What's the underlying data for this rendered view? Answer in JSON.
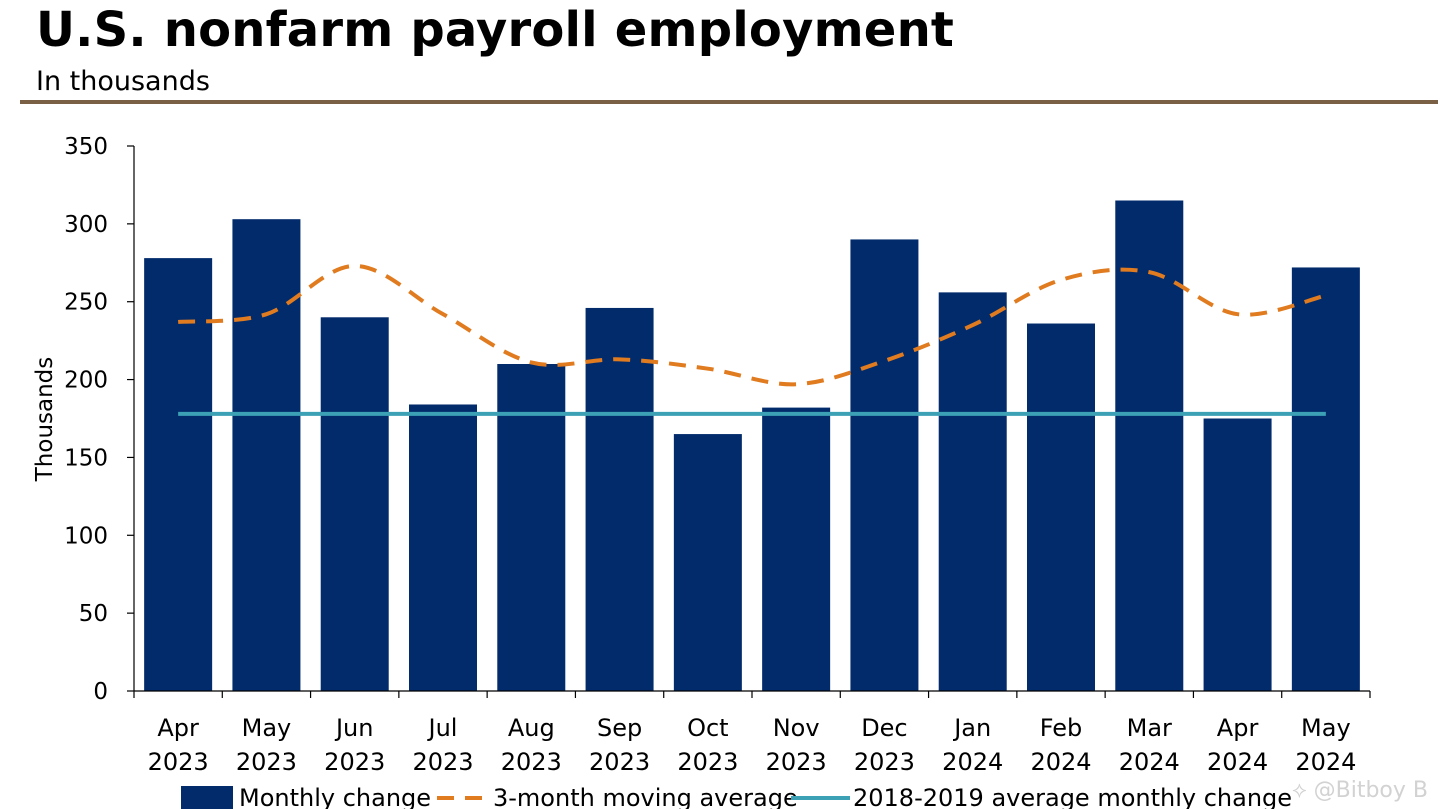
{
  "header": {
    "title": "U.S. nonfarm payroll employment",
    "subtitle": "In thousands"
  },
  "watermark": "⟡ @Bitboy B",
  "colors": {
    "bar": "#022b6b",
    "moving_average": "#e07b1f",
    "benchmark": "#3da1b5",
    "rule": "#7a6145"
  },
  "chart_data": {
    "type": "bar",
    "title": "U.S. nonfarm payroll employment",
    "subtitle": "In thousands",
    "xlabel": "",
    "ylabel": "Thousands",
    "ylim": [
      0,
      350
    ],
    "yticks": [
      0,
      50,
      100,
      150,
      200,
      250,
      300,
      350
    ],
    "categories": [
      {
        "month": "Apr",
        "year": "2023"
      },
      {
        "month": "May",
        "year": "2023"
      },
      {
        "month": "Jun",
        "year": "2023"
      },
      {
        "month": "Jul",
        "year": "2023"
      },
      {
        "month": "Aug",
        "year": "2023"
      },
      {
        "month": "Sep",
        "year": "2023"
      },
      {
        "month": "Oct",
        "year": "2023"
      },
      {
        "month": "Nov",
        "year": "2023"
      },
      {
        "month": "Dec",
        "year": "2023"
      },
      {
        "month": "Jan",
        "year": "2024"
      },
      {
        "month": "Feb",
        "year": "2024"
      },
      {
        "month": "Mar",
        "year": "2024"
      },
      {
        "month": "Apr",
        "year": "2024"
      },
      {
        "month": "May",
        "year": "2024"
      }
    ],
    "series": [
      {
        "name": "Monthly change",
        "type": "bar",
        "values": [
          278,
          303,
          240,
          184,
          210,
          246,
          165,
          182,
          290,
          256,
          236,
          315,
          175,
          272
        ]
      },
      {
        "name": "3-month moving average",
        "type": "line",
        "style": "dashed",
        "values": [
          237,
          242,
          273,
          242,
          211,
          213,
          207,
          197,
          212,
          235,
          264,
          269,
          242,
          254
        ]
      },
      {
        "name": "2018-2019 average monthly change",
        "type": "line",
        "style": "solid",
        "values": [
          178,
          178,
          178,
          178,
          178,
          178,
          178,
          178,
          178,
          178,
          178,
          178,
          178,
          178
        ]
      }
    ],
    "legend_position": "bottom"
  }
}
